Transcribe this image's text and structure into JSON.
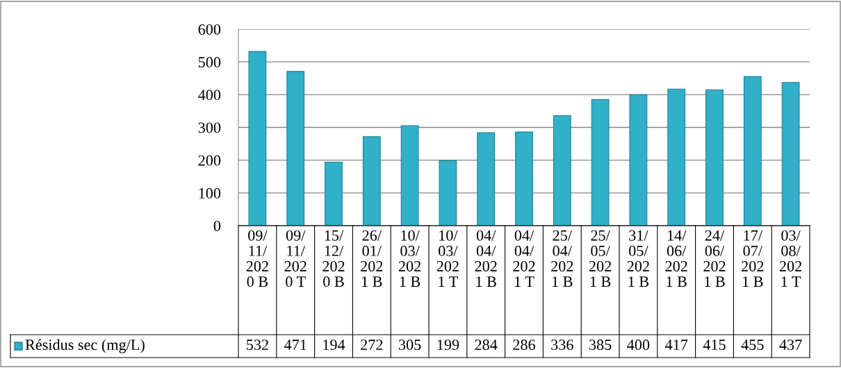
{
  "chart_data": {
    "type": "bar",
    "categories": [
      "09/11/2020 B",
      "09/11/2020 T",
      "15/12/2020 B",
      "26/01/2021 B",
      "10/03/2021 B",
      "10/03/2021 T",
      "04/04/2021 B",
      "04/04/2021 T",
      "25/04/2021 B",
      "25/05/2021 B",
      "31/05/2021 B",
      "14/06/2021 B",
      "24/06/2021 B",
      "17/07/2021 B",
      "03/08/2021 T"
    ],
    "series": [
      {
        "name": "Résidus sec (mg/L)",
        "color": "#31b0c8",
        "values": [
          532,
          471,
          194,
          272,
          305,
          199,
          284,
          286,
          336,
          385,
          400,
          417,
          415,
          455,
          437
        ]
      }
    ],
    "ylim": [
      0,
      600
    ],
    "yticks": [
      0,
      100,
      200,
      300,
      400,
      500,
      600
    ],
    "grid": "y",
    "legend": "bottom",
    "data_labels": true
  }
}
